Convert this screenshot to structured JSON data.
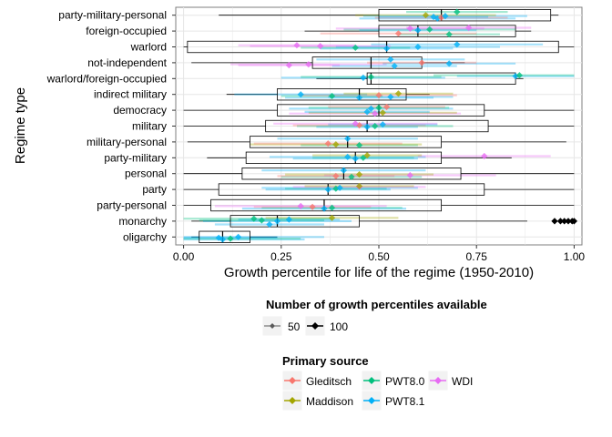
{
  "chart_data": {
    "type": "boxplot",
    "xlabel": "Growth percentile for life of the regime (1950-2010)",
    "ylabel": "Regime type",
    "xlim": [
      -0.02,
      1.02
    ],
    "x_ticks": [
      "0.00",
      "0.25",
      "0.50",
      "0.75",
      "1.00"
    ],
    "x_tick_values": [
      0.0,
      0.25,
      0.5,
      0.75,
      1.0
    ],
    "grid": true,
    "categories": [
      "party-military-personal",
      "foreign-occupied",
      "warlord",
      "not-independent",
      "warlord/foreign-occupied",
      "indirect military",
      "democracy",
      "military",
      "military-personal",
      "party-military",
      "personal",
      "party",
      "party-personal",
      "monarchy",
      "oligarchy"
    ],
    "boxes": [
      {
        "category": "party-military-personal",
        "whisker_low": 0.09,
        "q1": 0.5,
        "median": 0.66,
        "q3": 0.94,
        "whisker_high": 0.96,
        "outliers": []
      },
      {
        "category": "foreign-occupied",
        "whisker_low": 0.31,
        "q1": 0.5,
        "median": 0.6,
        "q3": 0.85,
        "whisker_high": 0.89,
        "outliers": []
      },
      {
        "category": "warlord",
        "whisker_low": 0.0,
        "q1": 0.01,
        "median": 0.52,
        "q3": 0.96,
        "whisker_high": 1.0,
        "outliers": []
      },
      {
        "category": "not-independent",
        "whisker_low": 0.02,
        "q1": 0.33,
        "median": 0.48,
        "q3": 0.61,
        "whisker_high": 0.72,
        "outliers": []
      },
      {
        "category": "warlord/foreign-occupied",
        "whisker_low": 0.34,
        "q1": 0.47,
        "median": 0.48,
        "q3": 0.85,
        "whisker_high": 0.87,
        "outliers": []
      },
      {
        "category": "indirect military",
        "whisker_low": 0.11,
        "q1": 0.24,
        "median": 0.45,
        "q3": 0.57,
        "whisker_high": 0.63,
        "outliers": []
      },
      {
        "category": "democracy",
        "whisker_low": 0.0,
        "q1": 0.24,
        "median": 0.5,
        "q3": 0.77,
        "whisker_high": 1.0,
        "outliers": []
      },
      {
        "category": "military",
        "whisker_low": 0.0,
        "q1": 0.21,
        "median": 0.47,
        "q3": 0.78,
        "whisker_high": 1.0,
        "outliers": []
      },
      {
        "category": "military-personal",
        "whisker_low": 0.01,
        "q1": 0.17,
        "median": 0.42,
        "q3": 0.66,
        "whisker_high": 0.98,
        "outliers": []
      },
      {
        "category": "party-military",
        "whisker_low": 0.06,
        "q1": 0.16,
        "median": 0.44,
        "q3": 0.66,
        "whisker_high": 0.84,
        "outliers": []
      },
      {
        "category": "personal",
        "whisker_low": 0.0,
        "q1": 0.15,
        "median": 0.41,
        "q3": 0.71,
        "whisker_high": 1.0,
        "outliers": []
      },
      {
        "category": "party",
        "whisker_low": 0.0,
        "q1": 0.09,
        "median": 0.37,
        "q3": 0.77,
        "whisker_high": 1.0,
        "outliers": []
      },
      {
        "category": "party-personal",
        "whisker_low": 0.0,
        "q1": 0.07,
        "median": 0.36,
        "q3": 0.66,
        "whisker_high": 1.0,
        "outliers": []
      },
      {
        "category": "monarchy",
        "whisker_low": 0.02,
        "q1": 0.12,
        "median": 0.24,
        "q3": 0.45,
        "whisker_high": 0.88,
        "outliers": [
          0.95,
          0.965,
          0.975,
          0.985,
          0.995,
          1.0
        ]
      },
      {
        "category": "oligarchy",
        "whisker_low": 0.02,
        "q1": 0.04,
        "median": 0.1,
        "q3": 0.17,
        "whisker_high": 0.24,
        "outliers": []
      }
    ],
    "points": [
      {
        "category": "party-military-personal",
        "x": 0.7,
        "source": "PWT8.0"
      },
      {
        "category": "party-military-personal",
        "x": 0.65,
        "source": "PWT8.1"
      },
      {
        "category": "party-military-personal",
        "x": 0.66,
        "source": "Gleditsch"
      },
      {
        "category": "party-military-personal",
        "x": 0.64,
        "source": "PWT8.1"
      },
      {
        "category": "party-military-personal",
        "x": 0.67,
        "source": "PWT8.1"
      },
      {
        "category": "party-military-personal",
        "x": 0.62,
        "source": "Maddison"
      },
      {
        "category": "foreign-occupied",
        "x": 0.6,
        "source": "PWT8.1"
      },
      {
        "category": "foreign-occupied",
        "x": 0.63,
        "source": "PWT8.0"
      },
      {
        "category": "foreign-occupied",
        "x": 0.58,
        "source": "WDI"
      },
      {
        "category": "foreign-occupied",
        "x": 0.73,
        "source": "WDI"
      },
      {
        "category": "foreign-occupied",
        "x": 0.68,
        "source": "PWT8.0"
      },
      {
        "category": "foreign-occupied",
        "x": 0.55,
        "source": "Gleditsch"
      },
      {
        "category": "warlord",
        "x": 0.52,
        "source": "PWT8.1"
      },
      {
        "category": "warlord",
        "x": 0.44,
        "source": "PWT8.0"
      },
      {
        "category": "warlord",
        "x": 0.6,
        "source": "PWT8.1"
      },
      {
        "category": "warlord",
        "x": 0.35,
        "source": "WDI"
      },
      {
        "category": "warlord",
        "x": 0.29,
        "source": "WDI"
      },
      {
        "category": "warlord",
        "x": 0.7,
        "source": "PWT8.1"
      },
      {
        "category": "not-independent",
        "x": 0.53,
        "source": "PWT8.1"
      },
      {
        "category": "not-independent",
        "x": 0.54,
        "source": "PWT8.1"
      },
      {
        "category": "not-independent",
        "x": 0.27,
        "source": "WDI"
      },
      {
        "category": "not-independent",
        "x": 0.32,
        "source": "WDI"
      },
      {
        "category": "not-independent",
        "x": 0.68,
        "source": "PWT8.1"
      },
      {
        "category": "not-independent",
        "x": 0.61,
        "source": "Gleditsch"
      },
      {
        "category": "warlord/foreign-occupied",
        "x": 0.46,
        "source": "PWT8.1"
      },
      {
        "category": "warlord/foreign-occupied",
        "x": 0.48,
        "source": "PWT8.0"
      },
      {
        "category": "warlord/foreign-occupied",
        "x": 0.85,
        "source": "PWT8.1"
      },
      {
        "category": "warlord/foreign-occupied",
        "x": 0.86,
        "source": "PWT8.0"
      },
      {
        "category": "indirect military",
        "x": 0.45,
        "source": "PWT8.1"
      },
      {
        "category": "indirect military",
        "x": 0.53,
        "source": "PWT8.1"
      },
      {
        "category": "indirect military",
        "x": 0.38,
        "source": "PWT8.0"
      },
      {
        "category": "indirect military",
        "x": 0.5,
        "source": "Gleditsch"
      },
      {
        "category": "indirect military",
        "x": 0.3,
        "source": "PWT8.1"
      },
      {
        "category": "indirect military",
        "x": 0.55,
        "source": "Maddison"
      },
      {
        "category": "democracy",
        "x": 0.48,
        "source": "PWT8.1"
      },
      {
        "category": "democracy",
        "x": 0.5,
        "source": "PWT8.0"
      },
      {
        "category": "democracy",
        "x": 0.52,
        "source": "Gleditsch"
      },
      {
        "category": "democracy",
        "x": 0.49,
        "source": "WDI"
      },
      {
        "category": "democracy",
        "x": 0.51,
        "source": "Maddison"
      },
      {
        "category": "democracy",
        "x": 0.47,
        "source": "PWT8.1"
      },
      {
        "category": "military",
        "x": 0.47,
        "source": "PWT8.1"
      },
      {
        "category": "military",
        "x": 0.49,
        "source": "PWT8.0"
      },
      {
        "category": "military",
        "x": 0.45,
        "source": "Gleditsch"
      },
      {
        "category": "military",
        "x": 0.51,
        "source": "PWT8.1"
      },
      {
        "category": "military",
        "x": 0.44,
        "source": "WDI"
      },
      {
        "category": "military-personal",
        "x": 0.42,
        "source": "PWT8.1"
      },
      {
        "category": "military-personal",
        "x": 0.45,
        "source": "PWT8.0"
      },
      {
        "category": "military-personal",
        "x": 0.39,
        "source": "Maddison"
      },
      {
        "category": "military-personal",
        "x": 0.37,
        "source": "Gleditsch"
      },
      {
        "category": "party-military",
        "x": 0.44,
        "source": "PWT8.1"
      },
      {
        "category": "party-military",
        "x": 0.46,
        "source": "PWT8.0"
      },
      {
        "category": "party-military",
        "x": 0.42,
        "source": "PWT8.1"
      },
      {
        "category": "party-military",
        "x": 0.77,
        "source": "WDI"
      },
      {
        "category": "party-military",
        "x": 0.47,
        "source": "Maddison"
      },
      {
        "category": "personal",
        "x": 0.41,
        "source": "PWT8.1"
      },
      {
        "category": "personal",
        "x": 0.43,
        "source": "PWT8.0"
      },
      {
        "category": "personal",
        "x": 0.39,
        "source": "Gleditsch"
      },
      {
        "category": "personal",
        "x": 0.58,
        "source": "WDI"
      },
      {
        "category": "personal",
        "x": 0.45,
        "source": "Maddison"
      },
      {
        "category": "party",
        "x": 0.37,
        "source": "PWT8.1"
      },
      {
        "category": "party",
        "x": 0.39,
        "source": "PWT8.0"
      },
      {
        "category": "party",
        "x": 0.4,
        "source": "PWT8.1"
      },
      {
        "category": "party",
        "x": 0.45,
        "source": "WDI"
      },
      {
        "category": "party",
        "x": 0.45,
        "source": "Maddison"
      },
      {
        "category": "party-personal",
        "x": 0.36,
        "source": "PWT8.1"
      },
      {
        "category": "party-personal",
        "x": 0.38,
        "source": "PWT8.0"
      },
      {
        "category": "party-personal",
        "x": 0.33,
        "source": "Gleditsch"
      },
      {
        "category": "party-personal",
        "x": 0.3,
        "source": "WDI"
      },
      {
        "category": "monarchy",
        "x": 0.24,
        "source": "PWT8.1"
      },
      {
        "category": "monarchy",
        "x": 0.2,
        "source": "PWT8.0"
      },
      {
        "category": "monarchy",
        "x": 0.27,
        "source": "PWT8.1"
      },
      {
        "category": "monarchy",
        "x": 0.18,
        "source": "PWT8.0"
      },
      {
        "category": "monarchy",
        "x": 0.38,
        "source": "Maddison"
      },
      {
        "category": "monarchy",
        "x": 0.22,
        "source": "PWT8.1"
      },
      {
        "category": "oligarchy",
        "x": 0.1,
        "source": "PWT8.1"
      },
      {
        "category": "oligarchy",
        "x": 0.12,
        "source": "PWT8.0"
      },
      {
        "category": "oligarchy",
        "x": 0.09,
        "source": "PWT8.1"
      },
      {
        "category": "oligarchy",
        "x": 0.14,
        "source": "PWT8.1"
      }
    ],
    "source_colors": {
      "Gleditsch": "#F8766D",
      "Maddison": "#A3A500",
      "PWT8.0": "#00BF7D",
      "PWT8.1": "#00B0F6",
      "WDI": "#E76BF3"
    },
    "legend_count": {
      "title": "Number of growth percentiles available",
      "items": [
        "50",
        "100"
      ],
      "placement": "bottom"
    },
    "legend_source": {
      "title": "Primary source",
      "items": [
        "Gleditsch",
        "Maddison",
        "PWT8.0",
        "PWT8.1",
        "WDI"
      ],
      "placement": "bottom"
    }
  }
}
